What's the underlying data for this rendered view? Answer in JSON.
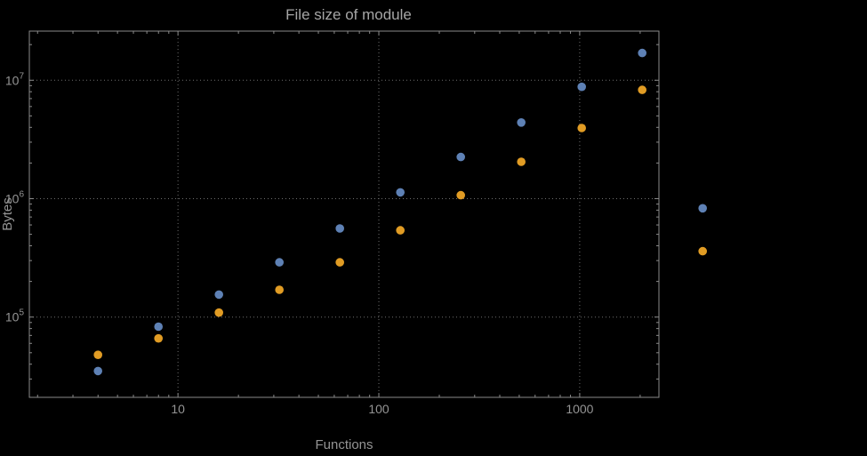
{
  "chart_data": {
    "type": "scatter",
    "title": "File size of module",
    "xlabel": "Functions",
    "ylabel": "Bytes",
    "xscale": "log",
    "yscale": "log",
    "grid": true,
    "frame": true,
    "legend": "none",
    "xlim": [
      1.82,
      2480
    ],
    "ylim": [
      21000,
      26000000
    ],
    "xticks": [
      10,
      100,
      1000
    ],
    "xtick_labels": [
      "10",
      "100",
      "1000"
    ],
    "yticks": [
      100000,
      1000000,
      10000000
    ],
    "ytick_base": "10",
    "ytick_exponents": [
      "5",
      "6",
      "7"
    ],
    "x": [
      4,
      8,
      16,
      32,
      64,
      128,
      256,
      512,
      1024,
      2048,
      4096
    ],
    "series": [
      {
        "name": "series-1-blue",
        "color": "#5e81b5",
        "values": [
          35000,
          83000,
          155000,
          290000,
          560000,
          1130000,
          2250000,
          4400000,
          8800000,
          17000000,
          830000
        ]
      },
      {
        "name": "series-2-orange",
        "color": "#e19c24",
        "values": [
          48000,
          66000,
          109000,
          170000,
          290000,
          540000,
          1070000,
          2050000,
          3950000,
          8300000,
          360000
        ]
      }
    ]
  },
  "colors": {
    "background": "#000000",
    "frame": "#8a8a8a",
    "grid": "#6f6f6f",
    "tick": "#8a8a8a",
    "text": "#949494",
    "title_text": "#a6a6a6"
  }
}
